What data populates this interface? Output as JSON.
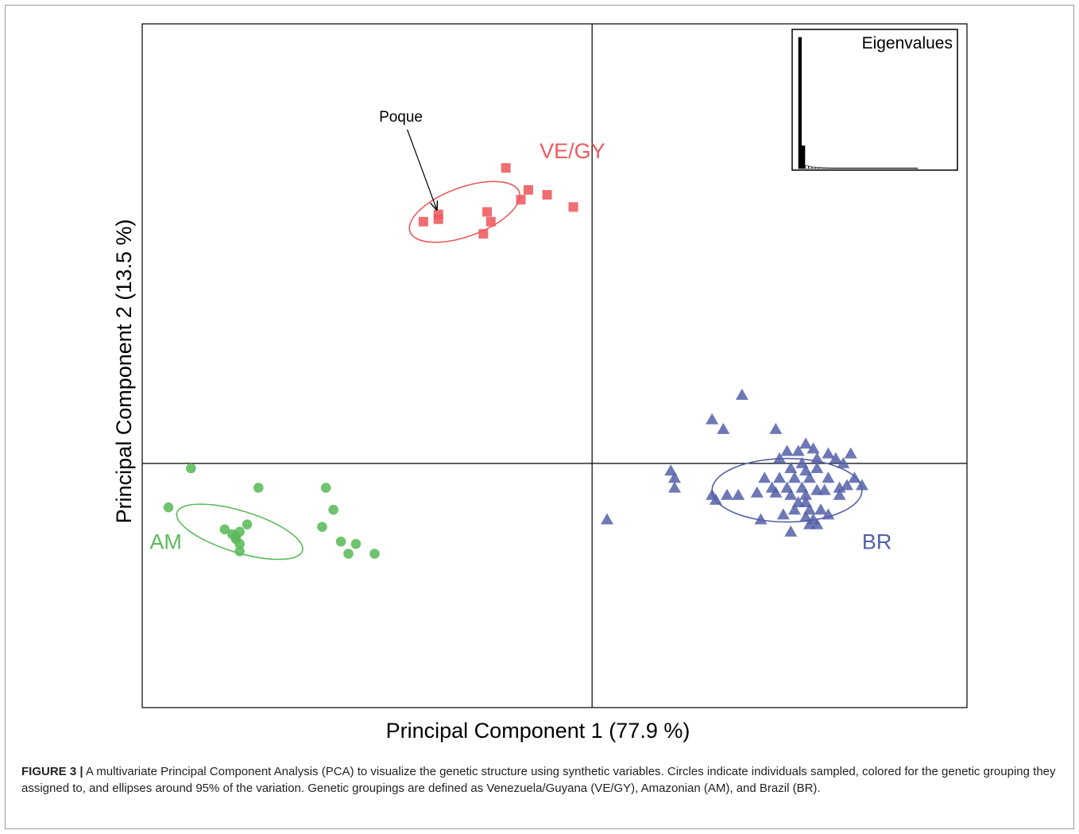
{
  "chart_data": {
    "type": "scatter",
    "xlabel": "Principal Component 1 (77.9 %)",
    "ylabel": "Principal Component 2 (13.5 %)",
    "xlim": [
      -1.2,
      1.0
    ],
    "ylim": [
      -1.0,
      1.8
    ],
    "grid": false,
    "origin_lines": true,
    "groups": [
      {
        "name": "VE/GY",
        "marker": "square",
        "color": "#ee5a5e",
        "ellipse": {
          "cx": -0.34,
          "cy": 1.03,
          "rx": 0.155,
          "ry": 0.1,
          "angle_deg": 20
        },
        "points": [
          {
            "x": -0.23,
            "y": 1.21
          },
          {
            "x": -0.17,
            "y": 1.12
          },
          {
            "x": -0.12,
            "y": 1.1
          },
          {
            "x": -0.19,
            "y": 1.08
          },
          {
            "x": -0.05,
            "y": 1.05
          },
          {
            "x": -0.28,
            "y": 1.03
          },
          {
            "x": -0.41,
            "y": 1.02
          },
          {
            "x": -0.41,
            "y": 1.0
          },
          {
            "x": -0.27,
            "y": 0.99
          },
          {
            "x": -0.45,
            "y": 0.99
          },
          {
            "x": -0.29,
            "y": 0.94
          }
        ]
      },
      {
        "name": "AM",
        "marker": "circle",
        "color": "#5bbb5b",
        "ellipse": {
          "cx": -0.94,
          "cy": -0.28,
          "rx": 0.175,
          "ry": 0.085,
          "angle_deg": -17
        },
        "points": [
          {
            "x": -1.07,
            "y": -0.02
          },
          {
            "x": -0.89,
            "y": -0.1
          },
          {
            "x": -0.71,
            "y": -0.1
          },
          {
            "x": -1.13,
            "y": -0.18
          },
          {
            "x": -0.69,
            "y": -0.19
          },
          {
            "x": -0.92,
            "y": -0.25
          },
          {
            "x": -0.72,
            "y": -0.26
          },
          {
            "x": -0.98,
            "y": -0.27
          },
          {
            "x": -0.96,
            "y": -0.29
          },
          {
            "x": -0.94,
            "y": -0.28
          },
          {
            "x": -0.95,
            "y": -0.3
          },
          {
            "x": -0.95,
            "y": -0.31
          },
          {
            "x": -0.94,
            "y": -0.33
          },
          {
            "x": -0.67,
            "y": -0.32
          },
          {
            "x": -0.63,
            "y": -0.33
          },
          {
            "x": -0.94,
            "y": -0.36
          },
          {
            "x": -0.65,
            "y": -0.37
          },
          {
            "x": -0.58,
            "y": -0.37
          }
        ]
      },
      {
        "name": "BR",
        "marker": "triangle",
        "color": "#5360a8",
        "ellipse": {
          "cx": 0.52,
          "cy": -0.11,
          "rx": 0.2,
          "ry": 0.13,
          "angle_deg": 0
        },
        "points": [
          {
            "x": 0.4,
            "y": 0.28
          },
          {
            "x": 0.32,
            "y": 0.18
          },
          {
            "x": 0.35,
            "y": 0.14
          },
          {
            "x": 0.49,
            "y": 0.14
          },
          {
            "x": 0.57,
            "y": 0.08
          },
          {
            "x": 0.52,
            "y": 0.05
          },
          {
            "x": 0.55,
            "y": 0.05
          },
          {
            "x": 0.59,
            "y": 0.06
          },
          {
            "x": 0.63,
            "y": 0.04
          },
          {
            "x": 0.69,
            "y": 0.04
          },
          {
            "x": 0.5,
            "y": 0.02
          },
          {
            "x": 0.6,
            "y": 0.02
          },
          {
            "x": 0.65,
            "y": 0.02
          },
          {
            "x": 0.56,
            "y": 0.0
          },
          {
            "x": 0.67,
            "y": 0.0
          },
          {
            "x": 0.53,
            "y": -0.02
          },
          {
            "x": 0.6,
            "y": -0.02
          },
          {
            "x": 0.57,
            "y": -0.03
          },
          {
            "x": 0.21,
            "y": -0.03
          },
          {
            "x": 0.22,
            "y": -0.06
          },
          {
            "x": 0.46,
            "y": -0.06
          },
          {
            "x": 0.5,
            "y": -0.06
          },
          {
            "x": 0.54,
            "y": -0.06
          },
          {
            "x": 0.58,
            "y": -0.06
          },
          {
            "x": 0.63,
            "y": -0.06
          },
          {
            "x": 0.7,
            "y": -0.06
          },
          {
            "x": 0.68,
            "y": -0.09
          },
          {
            "x": 0.72,
            "y": -0.09
          },
          {
            "x": 0.66,
            "y": -0.1
          },
          {
            "x": 0.22,
            "y": -0.1
          },
          {
            "x": 0.48,
            "y": -0.1
          },
          {
            "x": 0.52,
            "y": -0.1
          },
          {
            "x": 0.56,
            "y": -0.1
          },
          {
            "x": 0.6,
            "y": -0.11
          },
          {
            "x": 0.62,
            "y": -0.11
          },
          {
            "x": 0.44,
            "y": -0.12
          },
          {
            "x": 0.49,
            "y": -0.12
          },
          {
            "x": 0.53,
            "y": -0.13
          },
          {
            "x": 0.57,
            "y": -0.13
          },
          {
            "x": 0.36,
            "y": -0.13
          },
          {
            "x": 0.32,
            "y": -0.13
          },
          {
            "x": 0.39,
            "y": -0.13
          },
          {
            "x": 0.66,
            "y": -0.13
          },
          {
            "x": 0.33,
            "y": -0.15
          },
          {
            "x": 0.55,
            "y": -0.16
          },
          {
            "x": 0.57,
            "y": -0.16
          },
          {
            "x": 0.54,
            "y": -0.19
          },
          {
            "x": 0.58,
            "y": -0.19
          },
          {
            "x": 0.61,
            "y": -0.19
          },
          {
            "x": 0.51,
            "y": -0.21
          },
          {
            "x": 0.57,
            "y": -0.22
          },
          {
            "x": 0.63,
            "y": -0.21
          },
          {
            "x": 0.59,
            "y": -0.23
          },
          {
            "x": 0.45,
            "y": -0.23
          },
          {
            "x": 0.58,
            "y": -0.25
          },
          {
            "x": 0.6,
            "y": -0.25
          },
          {
            "x": 0.04,
            "y": -0.23
          },
          {
            "x": 0.53,
            "y": -0.28
          }
        ]
      }
    ],
    "group_labels": [
      {
        "text": "VE/GY",
        "x": -0.14,
        "y": 1.25,
        "color": "#ee5a5e"
      },
      {
        "text": "AM",
        "x": -1.18,
        "y": -0.35,
        "color": "#5bbb5b"
      },
      {
        "text": "BR",
        "x": 0.72,
        "y": -0.35,
        "color": "#5360a8"
      }
    ],
    "annotation": {
      "text": "Poque",
      "x": -0.51,
      "y": 1.4,
      "target": {
        "x": -0.41,
        "y": 1.01
      }
    },
    "inset": {
      "title": "Eigenvalues",
      "type": "bar",
      "values": [
        77.9,
        13.5,
        1.8,
        1.2,
        0.9,
        0.7,
        0.6,
        0.5,
        0.45,
        0.4,
        0.35,
        0.3,
        0.28,
        0.25,
        0.22,
        0.2,
        0.18,
        0.16,
        0.14,
        0.12,
        0.1,
        0.09,
        0.08,
        0.07,
        0.06,
        0.05,
        0.05,
        0.04,
        0.04,
        0.03,
        0.03,
        0.02,
        0.02,
        0.02,
        0.01
      ],
      "filled_count": 2
    }
  },
  "caption": {
    "label": "FIGURE 3 |",
    "text": " A multivariate Principal Component Analysis (PCA) to visualize the genetic structure using synthetic variables. Circles indicate individuals sampled, colored for the genetic grouping they assigned to, and ellipses around 95% of the variation. Genetic groupings are defined as Venezuela/Guyana (VE/GY), Amazonian (AM), and Brazil (BR)."
  }
}
